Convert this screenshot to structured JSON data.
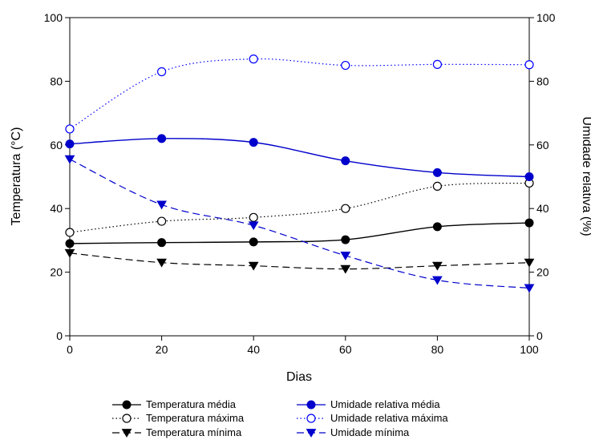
{
  "chart_data": {
    "type": "line",
    "xlabel": "Dias",
    "ylabel_left": "Temperatura (°C)",
    "ylabel_right": "Umidade relativa (%)",
    "xlim": [
      0,
      100
    ],
    "ylim_left": [
      0,
      100
    ],
    "ylim_right": [
      0,
      100
    ],
    "x_ticks": [
      0,
      20,
      40,
      60,
      80,
      100
    ],
    "y_ticks_left": [
      0,
      20,
      40,
      60,
      80,
      100
    ],
    "y_ticks_right": [
      0,
      20,
      40,
      60,
      80,
      100
    ],
    "grid": false,
    "legend_position": "bottom",
    "x": [
      0,
      20,
      40,
      60,
      80,
      100
    ],
    "series": [
      {
        "name": "Temperatura média",
        "axis": "left",
        "color": "#000000",
        "line": "solid",
        "marker": "filled-circle",
        "values": [
          29,
          29.3,
          29.5,
          30.2,
          34.3,
          35.5
        ]
      },
      {
        "name": "Temperatura máxima",
        "axis": "left",
        "color": "#000000",
        "line": "dotted",
        "marker": "open-circle",
        "values": [
          32.5,
          36,
          37.2,
          40,
          47,
          48
        ]
      },
      {
        "name": "Temperatura mínima",
        "axis": "left",
        "color": "#000000",
        "line": "dashed",
        "marker": "filled-triangle-down",
        "values": [
          26,
          23,
          22,
          21,
          22,
          23
        ]
      },
      {
        "name": "Umidade relativa média",
        "axis": "right",
        "color": "#0000cc",
        "line": "solid",
        "marker": "filled-circle",
        "values": [
          60.3,
          62,
          60.8,
          55,
          51.3,
          50
        ]
      },
      {
        "name": "Umidade relativa máxima",
        "axis": "right",
        "color": "#0000ff",
        "line": "dotted",
        "marker": "open-circle",
        "values": [
          65,
          83,
          87,
          85,
          85.3,
          85.2
        ]
      },
      {
        "name": "Umidade mínima",
        "axis": "right",
        "color": "#0000cc",
        "line": "dashed",
        "marker": "filled-triangle-down",
        "values": [
          55.5,
          41.2,
          34.7,
          25.2,
          17.5,
          15
        ]
      }
    ]
  }
}
